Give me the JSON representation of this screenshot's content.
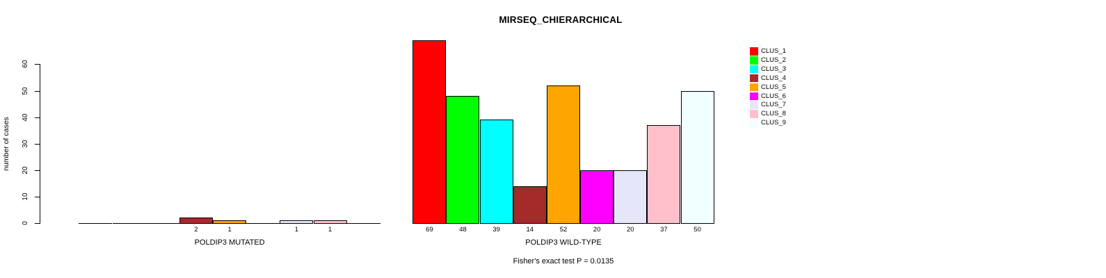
{
  "title": "MIRSEQ_CHIERARCHICAL",
  "chart_data": {
    "type": "bar",
    "title": "MIRSEQ_CHIERARCHICAL",
    "ylabel": "number of cases",
    "xlabel": "",
    "yticks": [
      0,
      10,
      20,
      30,
      40,
      50,
      60
    ],
    "ylim": [
      0,
      69
    ],
    "grid": false,
    "legend_position": "right",
    "bar_value_labels_shown": true,
    "clusters": [
      "CLUS_1",
      "CLUS_2",
      "CLUS_3",
      "CLUS_4",
      "CLUS_5",
      "CLUS_6",
      "CLUS_7",
      "CLUS_8",
      "CLUS_9"
    ],
    "colors": [
      "#ff0000",
      "#00ff00",
      "#00ffff",
      "#a52a2a",
      "#ffa500",
      "#ff00ff",
      "#e6e6fa",
      "#ffc0cb",
      "#f0ffff"
    ],
    "series": [
      {
        "name": "POLDIP3 MUTATED",
        "values": [
          0,
          0,
          0,
          2,
          1,
          0,
          1,
          1,
          0
        ]
      },
      {
        "name": "POLDIP3 WILD-TYPE",
        "values": [
          69,
          48,
          39,
          14,
          52,
          20,
          20,
          37,
          50
        ]
      }
    ],
    "footnote": "Fisher's exact test P = 0.0135"
  }
}
